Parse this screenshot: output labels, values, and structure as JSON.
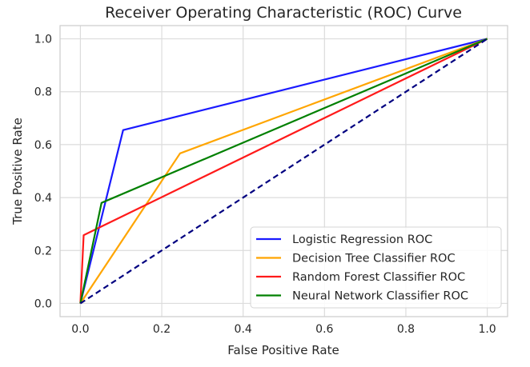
{
  "chart_data": {
    "type": "line",
    "title": "Receiver Operating Characteristic (ROC) Curve",
    "xlabel": "False Positive Rate",
    "ylabel": "True Positive Rate",
    "xlim": [
      -0.05,
      1.05
    ],
    "ylim": [
      -0.05,
      1.05
    ],
    "xticks": [
      0.0,
      0.2,
      0.4,
      0.6,
      0.8,
      1.0
    ],
    "xtick_labels": [
      "0.0",
      "0.2",
      "0.4",
      "0.6",
      "0.8",
      "1.0"
    ],
    "yticks": [
      0.0,
      0.2,
      0.4,
      0.6,
      0.8,
      1.0
    ],
    "ytick_labels": [
      "0.0",
      "0.2",
      "0.4",
      "0.6",
      "0.8",
      "1.0"
    ],
    "grid": true,
    "legend_position": "lower-right",
    "series": [
      {
        "name": "Logistic Regression ROC",
        "color": "#1a1aff",
        "x": [
          0.0,
          0.105,
          1.0
        ],
        "y": [
          0.0,
          0.655,
          1.0
        ]
      },
      {
        "name": "Decision Tree Classifier ROC",
        "color": "#ffa500",
        "x": [
          0.0,
          0.245,
          1.0
        ],
        "y": [
          0.0,
          0.567,
          1.0
        ]
      },
      {
        "name": "Random Forest Classifier ROC",
        "color": "#ff1a1a",
        "x": [
          0.0,
          0.008,
          1.0
        ],
        "y": [
          0.0,
          0.258,
          1.0
        ]
      },
      {
        "name": "Neural Network Classifier ROC",
        "color": "#008000",
        "x": [
          0.0,
          0.052,
          1.0
        ],
        "y": [
          0.0,
          0.38,
          1.0
        ]
      }
    ],
    "reference_line": {
      "color": "#000080",
      "style": "dashed",
      "x": [
        0.0,
        1.0
      ],
      "y": [
        0.0,
        1.0
      ]
    }
  }
}
